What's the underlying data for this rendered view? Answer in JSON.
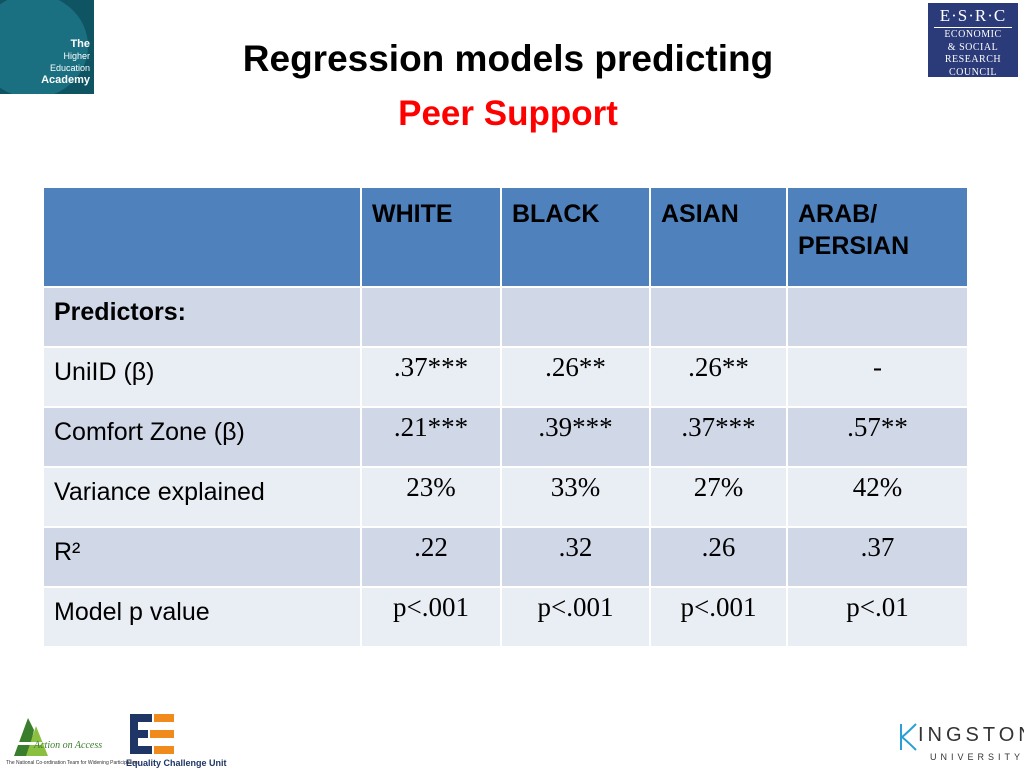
{
  "logos": {
    "hea": [
      "The",
      "Higher",
      "Education",
      "Academy"
    ],
    "esrc": {
      "top": "E·S·R·C",
      "lines": [
        "ECONOMIC",
        "& SOCIAL",
        "RESEARCH",
        "COUNCIL"
      ]
    },
    "action_on_access": {
      "name": "Action on Access",
      "tagline": "The National Co-ordination Team for Widening Participation"
    },
    "ecu": {
      "name": "Equality Challenge Unit"
    },
    "kingston": {
      "name": "INGSTON",
      "sub": "UNIVERSITY"
    }
  },
  "title": {
    "line1": "Regression models predicting",
    "line2": "Peer Support"
  },
  "table": {
    "columns": [
      "WHITE",
      "BLACK",
      "ASIAN",
      "ARAB/ PERSIAN"
    ],
    "rows": [
      {
        "label": "Predictors:",
        "values": [
          "",
          "",
          "",
          ""
        ]
      },
      {
        "label": "UniID (β)",
        "values": [
          ".37***",
          ".26**",
          ".26**",
          "-"
        ]
      },
      {
        "label": "Comfort Zone (β)",
        "values": [
          ".21***",
          ".39***",
          ".37***",
          ".57**"
        ]
      },
      {
        "label": "Variance explained",
        "values": [
          "23%",
          "33%",
          "27%",
          "42%"
        ]
      },
      {
        "label": "R²",
        "values": [
          ".22",
          ".32",
          ".26",
          ".37"
        ]
      },
      {
        "label": "Model p value",
        "values": [
          "p<.001",
          "p<.001",
          "p<.001",
          "p<.01"
        ]
      }
    ]
  },
  "colors": {
    "header": "#4f81bd",
    "row_odd": "#d0d8e8",
    "row_even": "#e9edf4",
    "accent_title": "#ff0000"
  }
}
